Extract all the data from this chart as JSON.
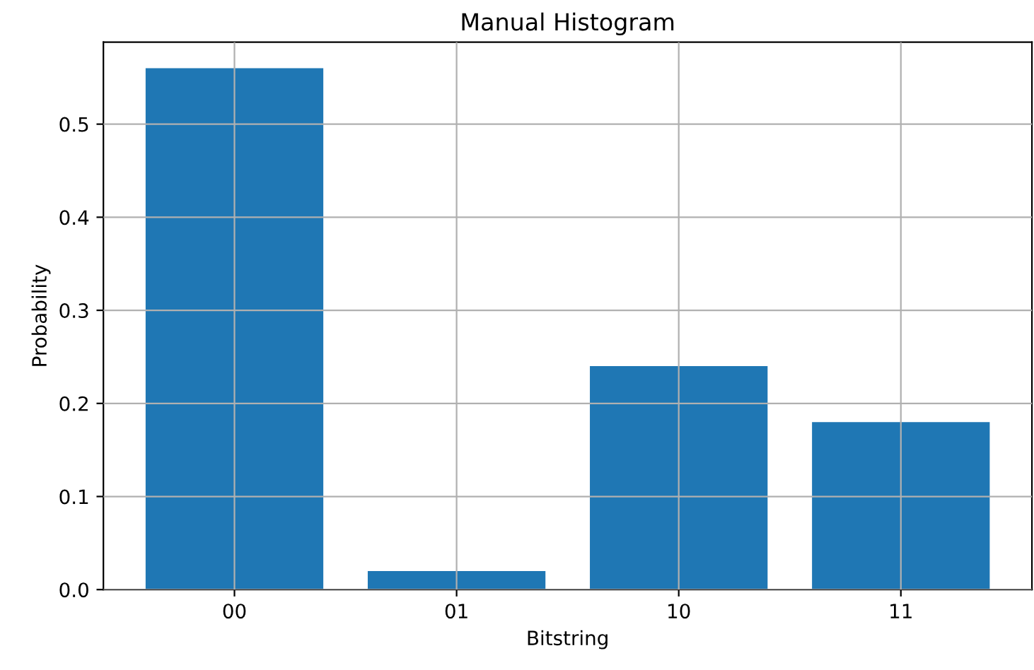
{
  "chart_data": {
    "type": "bar",
    "title": "Manual Histogram",
    "xlabel": "Bitstring",
    "ylabel": "Probability",
    "categories": [
      "00",
      "01",
      "10",
      "11"
    ],
    "values": [
      0.56,
      0.02,
      0.24,
      0.18
    ],
    "color": "#1f77b4",
    "ylim": [
      0,
      0.588
    ],
    "yticks": [
      {
        "value": 0,
        "label": "0.0"
      },
      0.1,
      0.2,
      0.3,
      0.4,
      0.5
    ],
    "grid": true
  }
}
